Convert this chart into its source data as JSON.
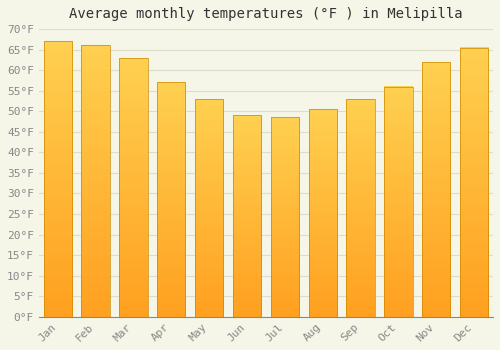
{
  "title": "Average monthly temperatures (°F ) in Melipilla",
  "months": [
    "Jan",
    "Feb",
    "Mar",
    "Apr",
    "May",
    "Jun",
    "Jul",
    "Aug",
    "Sep",
    "Oct",
    "Nov",
    "Dec"
  ],
  "values": [
    67,
    66,
    63,
    57,
    53,
    49,
    48.5,
    50.5,
    53,
    56,
    62,
    65.5
  ],
  "bar_color_bottom": "#FFA020",
  "bar_color_top": "#FFD050",
  "bar_edge_color": "#CC8800",
  "background_color": "#F5F5E8",
  "grid_color": "#DDDDCC",
  "ylim": [
    0,
    70
  ],
  "yticks": [
    0,
    5,
    10,
    15,
    20,
    25,
    30,
    35,
    40,
    45,
    50,
    55,
    60,
    65,
    70
  ],
  "ylabel_suffix": "°F",
  "title_fontsize": 10,
  "tick_fontsize": 8,
  "tick_color": "#888888",
  "title_color": "#333333",
  "font_family": "monospace"
}
